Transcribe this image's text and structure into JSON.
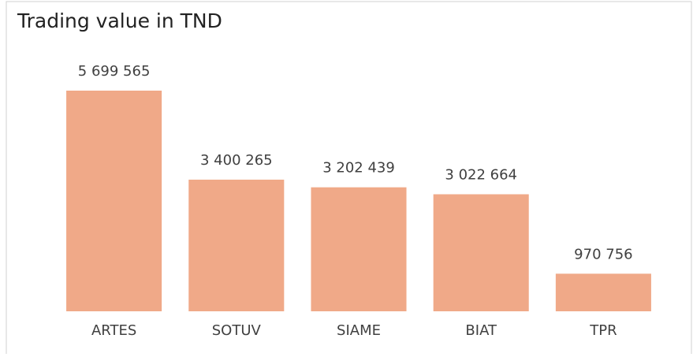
{
  "chart_data": {
    "type": "bar",
    "title": "Trading value in TND",
    "categories": [
      "ARTES",
      "SOTUV",
      "SIAME",
      "BIAT",
      "TPR"
    ],
    "values": [
      5699565,
      3400265,
      3202439,
      3022664,
      970756
    ],
    "value_labels": [
      "5 699 565",
      "3 400 265",
      "3 202 439",
      "3 022 664",
      "970 756"
    ],
    "color": "#f0a988"
  }
}
